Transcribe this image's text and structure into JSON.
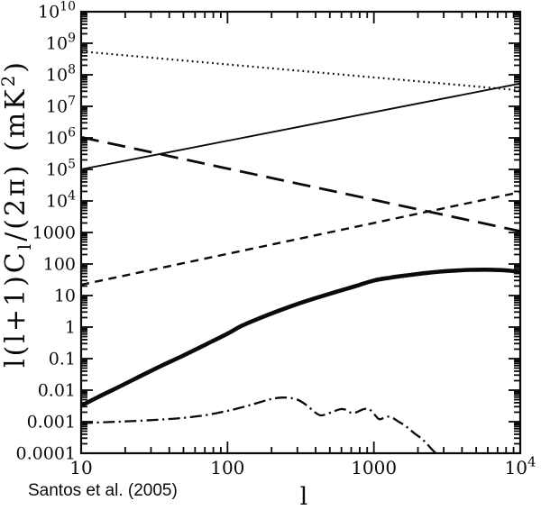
{
  "caption": {
    "text": "Santos et al. (2005)"
  },
  "chart_data": {
    "type": "line",
    "title": "",
    "xlabel": "l",
    "ylabel_parts": [
      {
        "text": "l(l+1)C"
      },
      {
        "text": "l",
        "script": "sub"
      },
      {
        "text": "/(2π)  (mK"
      },
      {
        "text": "2",
        "script": "sup"
      },
      {
        "text": ")"
      }
    ],
    "x_scale": "log",
    "y_scale": "log",
    "xlim": [
      10,
      10000
    ],
    "ylim": [
      0.0001,
      10000000000.0
    ],
    "grid": false,
    "legend": false,
    "frame_color": "#0a0a0a",
    "x_ticks": [
      {
        "value": 10,
        "label": "10"
      },
      {
        "value": 100,
        "label": "100"
      },
      {
        "value": 1000,
        "label": "1000"
      },
      {
        "value": 10000,
        "label": "10^4"
      }
    ],
    "y_ticks": [
      {
        "value": 10000000000.0,
        "label": "10^10"
      },
      {
        "value": 1000000000.0,
        "label": "10^9"
      },
      {
        "value": 100000000.0,
        "label": "10^8"
      },
      {
        "value": 10000000.0,
        "label": "10^7"
      },
      {
        "value": 1000000.0,
        "label": "10^6"
      },
      {
        "value": 100000.0,
        "label": "10^5"
      },
      {
        "value": 10000.0,
        "label": "10^4"
      },
      {
        "value": 1000,
        "label": "1000"
      },
      {
        "value": 100,
        "label": "100"
      },
      {
        "value": 10,
        "label": "10"
      },
      {
        "value": 1,
        "label": "1"
      },
      {
        "value": 0.1,
        "label": "0.1"
      },
      {
        "value": 0.01,
        "label": "0.01"
      },
      {
        "value": 0.001,
        "label": "0.001"
      },
      {
        "value": 0.0001,
        "label": "0.0001"
      }
    ],
    "series": [
      {
        "name": "dotted-line",
        "style": "dotted",
        "width": 2.2,
        "dash": "1.8 3.8",
        "points": [
          [
            10,
            550000000.0
          ],
          [
            10000,
            32000000.0
          ]
        ]
      },
      {
        "name": "thin-solid-line",
        "style": "solid",
        "width": 1.9,
        "dash": "",
        "points": [
          [
            10,
            100000.0
          ],
          [
            10000,
            53000000.0
          ]
        ]
      },
      {
        "name": "long-dash-line",
        "style": "long-dash",
        "width": 2.8,
        "dash": "20 10",
        "points": [
          [
            10,
            1050000.0
          ],
          [
            10000,
            1100.0
          ]
        ]
      },
      {
        "name": "short-dash-line",
        "style": "short-dash",
        "width": 2.4,
        "dash": "9 6.5",
        "points": [
          [
            10,
            22
          ],
          [
            10000,
            19000.0
          ]
        ]
      },
      {
        "name": "thick-solid-line",
        "style": "solid",
        "width": 4.6,
        "dash": "",
        "points": [
          [
            10,
            0.0032
          ],
          [
            13,
            0.006
          ],
          [
            17,
            0.011
          ],
          [
            22,
            0.02
          ],
          [
            28,
            0.035
          ],
          [
            36,
            0.062
          ],
          [
            47,
            0.11
          ],
          [
            60,
            0.19
          ],
          [
            78,
            0.35
          ],
          [
            100,
            0.62
          ],
          [
            125,
            1.1
          ],
          [
            160,
            1.8
          ],
          [
            220,
            3.2
          ],
          [
            300,
            5.4
          ],
          [
            400,
            8.3
          ],
          [
            550,
            13
          ],
          [
            750,
            20
          ],
          [
            1000,
            30
          ],
          [
            1300,
            37
          ],
          [
            1700,
            44
          ],
          [
            2200,
            51
          ],
          [
            2800,
            57
          ],
          [
            3600,
            62
          ],
          [
            4600,
            65
          ],
          [
            5800,
            66
          ],
          [
            7200,
            64.5
          ],
          [
            8600,
            61
          ],
          [
            10000,
            55
          ]
        ]
      },
      {
        "name": "dash-dot-line",
        "style": "dash-dot",
        "width": 2.3,
        "dash": "13 4.5 2.2 4.5",
        "points": [
          [
            10,
            0.0009
          ],
          [
            15,
            0.00097
          ],
          [
            22,
            0.00104
          ],
          [
            33,
            0.00115
          ],
          [
            48,
            0.0013
          ],
          [
            70,
            0.0016
          ],
          [
            95,
            0.0021
          ],
          [
            120,
            0.0027
          ],
          [
            150,
            0.0036
          ],
          [
            185,
            0.0048
          ],
          [
            215,
            0.0056
          ],
          [
            255,
            0.0058
          ],
          [
            300,
            0.005
          ],
          [
            345,
            0.0034
          ],
          [
            395,
            0.002
          ],
          [
            430,
            0.0016
          ],
          [
            470,
            0.0017
          ],
          [
            530,
            0.0021
          ],
          [
            590,
            0.0025
          ],
          [
            640,
            0.0024
          ],
          [
            700,
            0.0019
          ],
          [
            760,
            0.002
          ],
          [
            830,
            0.0024
          ],
          [
            895,
            0.0026
          ],
          [
            950,
            0.0023
          ],
          [
            1020,
            0.0016
          ],
          [
            1085,
            0.0012
          ],
          [
            1160,
            0.0013
          ],
          [
            1250,
            0.00145
          ],
          [
            1350,
            0.0013
          ],
          [
            1450,
            0.00105
          ],
          [
            1600,
            0.0008
          ],
          [
            1750,
            0.00058
          ],
          [
            1900,
            0.00042
          ],
          [
            2100,
            0.0003
          ],
          [
            2300,
            0.0002
          ],
          [
            2500,
            0.00013
          ],
          [
            2650,
            0.0001
          ]
        ]
      }
    ]
  }
}
